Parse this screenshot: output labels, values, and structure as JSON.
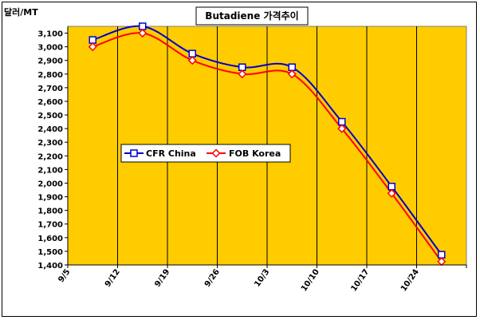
{
  "chart_data": {
    "type": "line",
    "title": "Butadiene 가격추이",
    "unit_label": "달러/MT",
    "categories": [
      "9/5",
      "9/12",
      "9/19",
      "9/26",
      "10/3",
      "10/10",
      "10/17",
      "10/24"
    ],
    "series": [
      {
        "name": "CFR China",
        "values": [
          3050,
          3150,
          2950,
          2850,
          2850,
          2450,
          1975,
          1475
        ],
        "color": "#0000cc",
        "marker": "square"
      },
      {
        "name": "FOB Korea",
        "values": [
          3000,
          3100,
          2900,
          2800,
          2800,
          2400,
          1925,
          1425
        ],
        "color": "#ff0000",
        "marker": "diamond"
      }
    ],
    "y_ticks": [
      "1,400",
      "1,500",
      "1,600",
      "1,700",
      "1,800",
      "1,900",
      "2,000",
      "2,100",
      "2,200",
      "2,300",
      "2,400",
      "2,500",
      "2,600",
      "2,700",
      "2,800",
      "2,900",
      "3,000",
      "3,100"
    ],
    "ylim": [
      1400,
      3150
    ],
    "grid": "vertical",
    "plot_background": "#ffcc00",
    "legend_position": "middle-left"
  }
}
